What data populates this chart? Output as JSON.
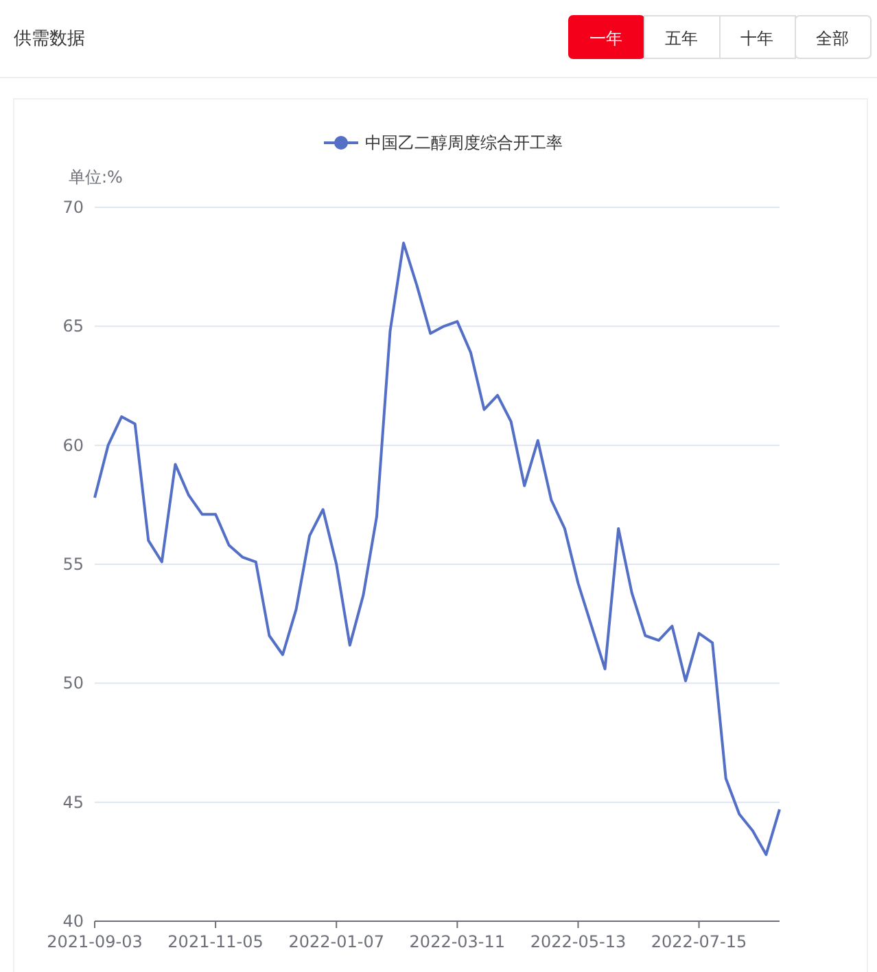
{
  "chart_data": {
    "type": "line",
    "title": "供需数据",
    "annotations": [
      "一年",
      "五年",
      "十年",
      "全部"
    ],
    "ylabel": "单位:%",
    "categories": [
      "2021-09-03",
      null,
      null,
      null,
      null,
      null,
      null,
      null,
      null,
      "2021-11-05",
      null,
      null,
      null,
      null,
      null,
      null,
      null,
      null,
      "2022-01-07",
      null,
      null,
      null,
      null,
      null,
      null,
      null,
      null,
      "2022-03-11",
      null,
      null,
      null,
      null,
      null,
      null,
      null,
      null,
      "2022-05-13",
      null,
      null,
      null,
      null,
      null,
      null,
      null,
      null,
      "2022-07-15",
      null,
      null,
      null,
      null,
      null,
      null
    ],
    "series": [
      {
        "name": "中国乙二醇周度综合开工率",
        "color": "#5470c6",
        "values": [
          57.8,
          60.0,
          61.2,
          60.9,
          56.0,
          55.1,
          59.2,
          57.9,
          57.1,
          57.1,
          55.8,
          55.3,
          55.1,
          52.0,
          51.2,
          53.1,
          56.2,
          57.3,
          55.0,
          51.6,
          53.7,
          57.0,
          64.8,
          68.5,
          66.7,
          64.7,
          65.0,
          65.2,
          63.9,
          61.5,
          62.1,
          61.0,
          58.3,
          60.2,
          57.7,
          56.5,
          54.2,
          52.4,
          50.6,
          56.5,
          53.8,
          52.0,
          51.8,
          52.4,
          50.1,
          52.1,
          51.7,
          46.0,
          44.5,
          43.8,
          42.8,
          44.7
        ]
      }
    ],
    "ylim": [
      40,
      70
    ],
    "yticks": [
      40,
      45,
      50,
      55,
      60,
      65,
      70
    ],
    "grid": "y",
    "legend": "top",
    "line_style": "solid"
  }
}
